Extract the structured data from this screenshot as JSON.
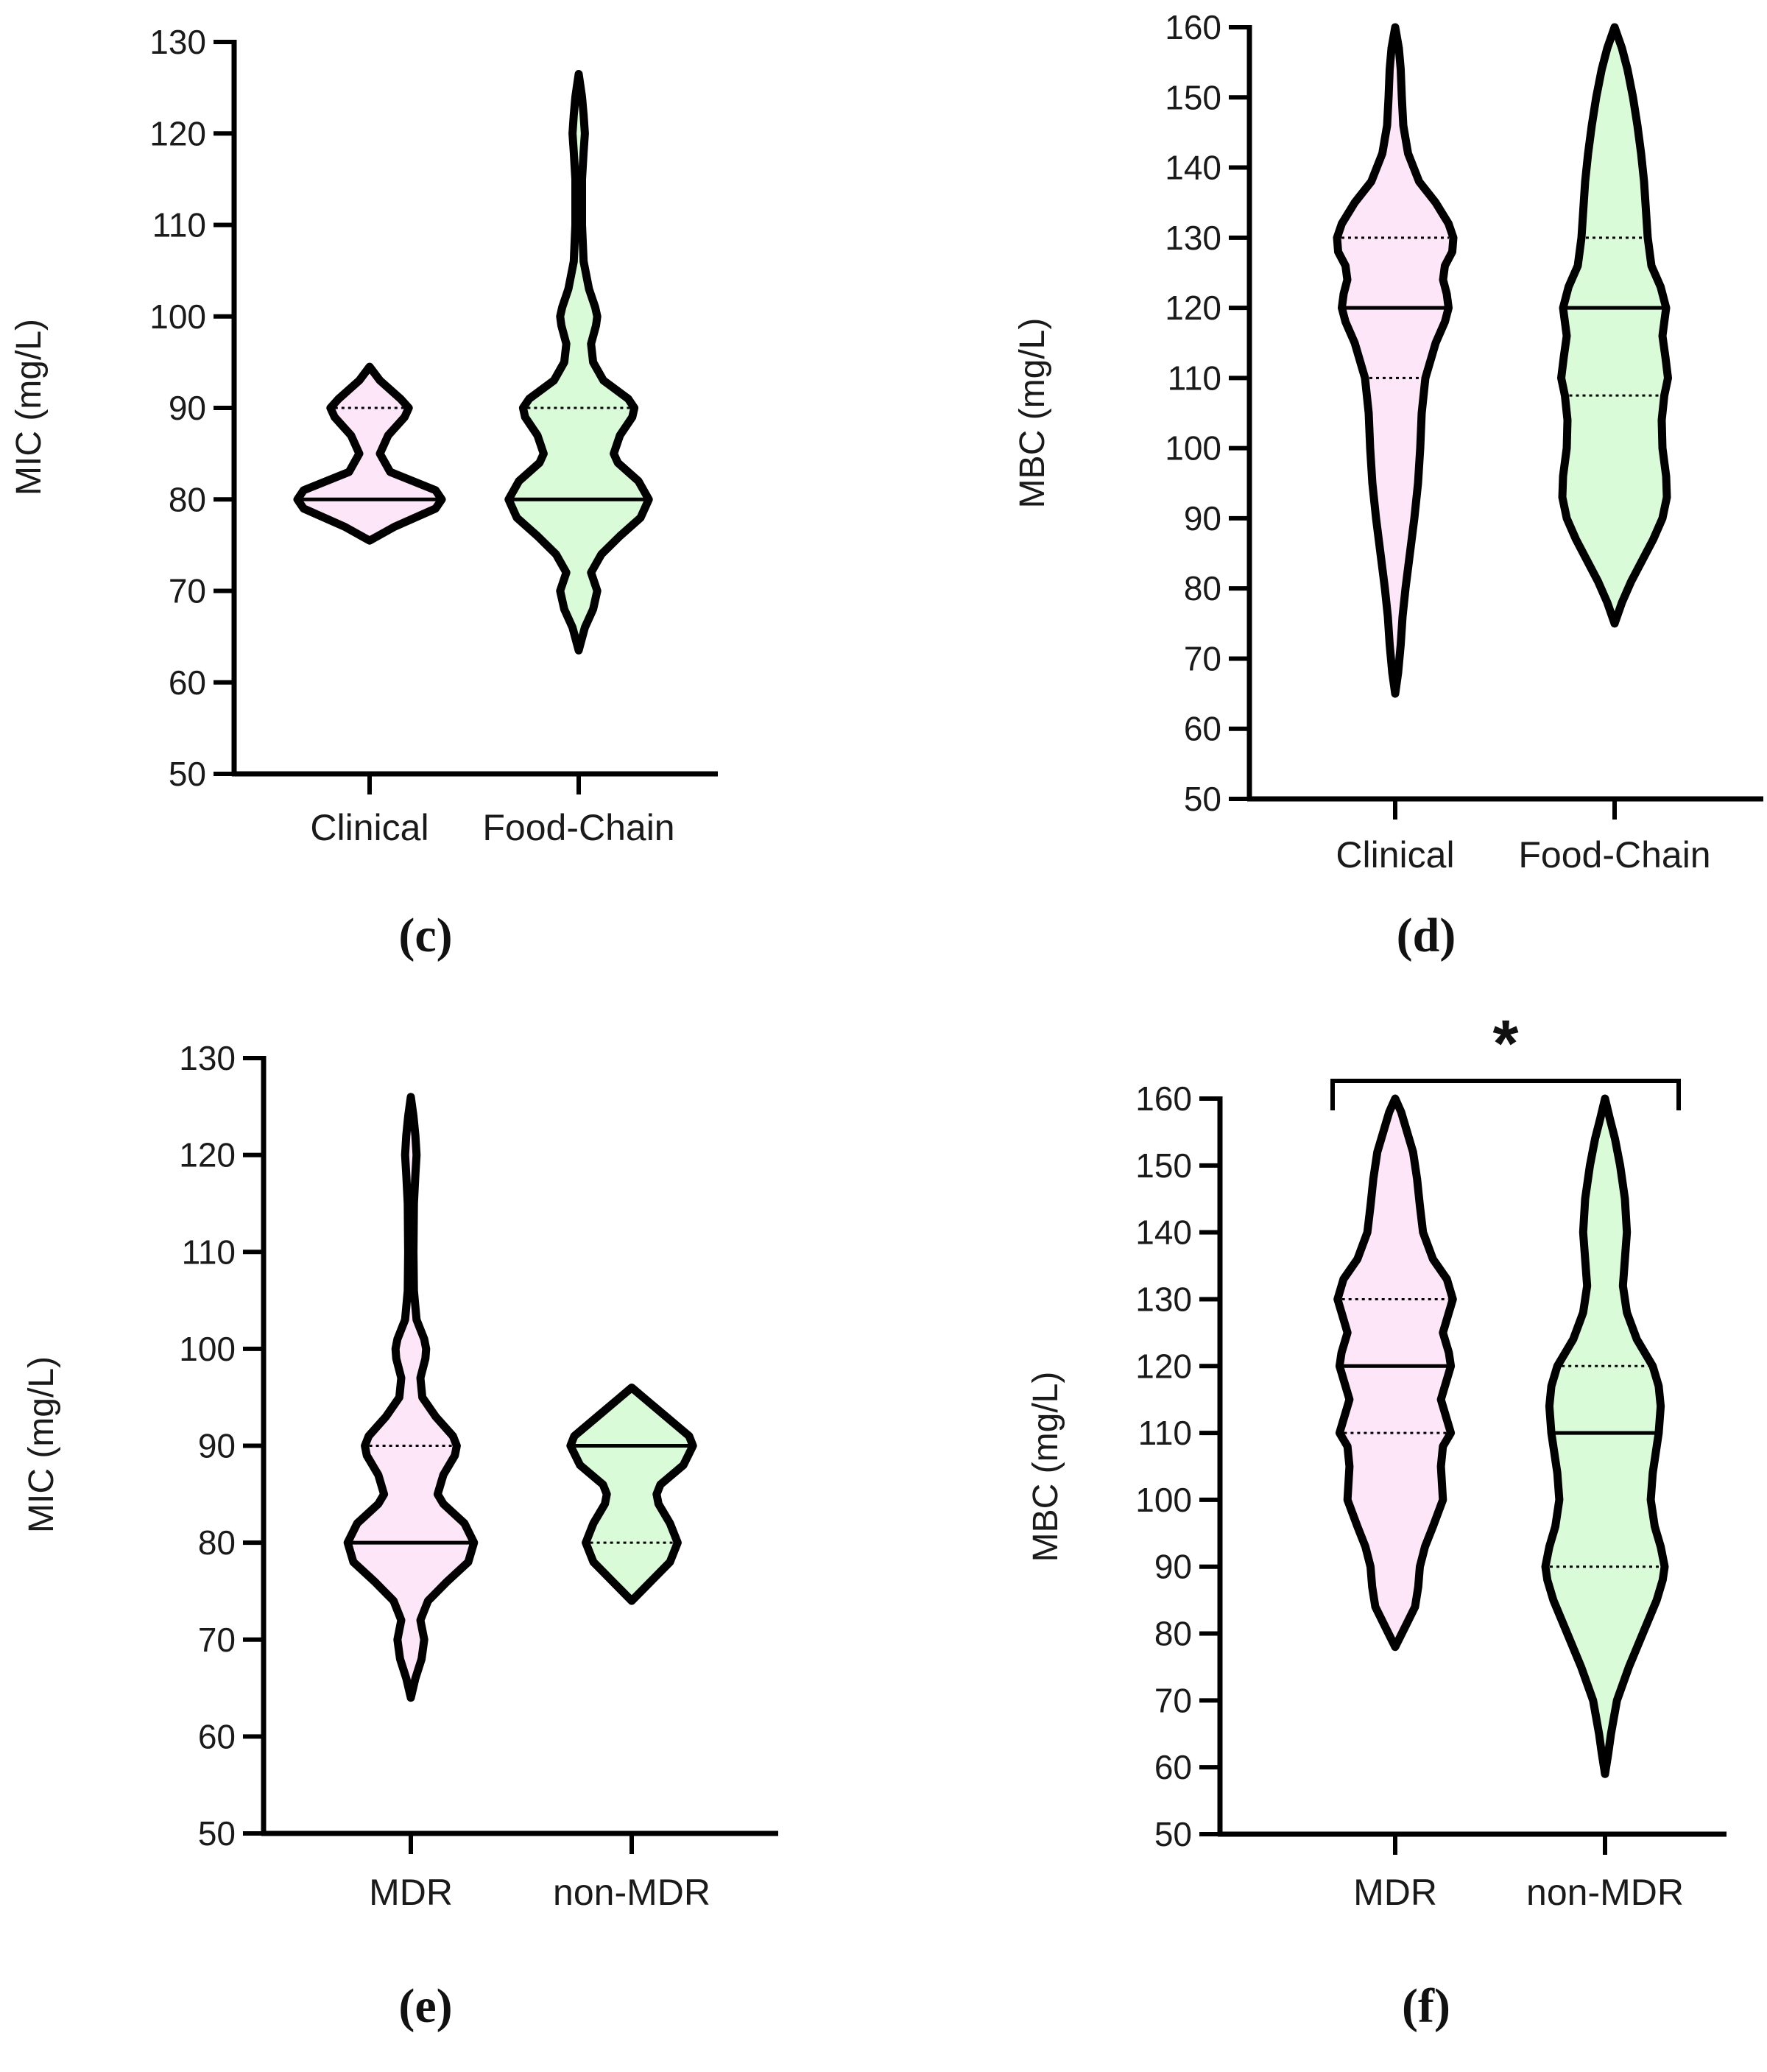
{
  "colors": {
    "group1_fill": "#fde6f7",
    "group2_fill": "#dafbd8",
    "stroke": "#000000"
  },
  "chart_data": [
    {
      "panel": "(c)",
      "type": "violin",
      "ylabel": "MIC (mg/L)",
      "ylim": [
        50,
        130
      ],
      "yticks": [
        50,
        60,
        70,
        80,
        90,
        100,
        110,
        120,
        130
      ],
      "categories": [
        "Clinical",
        "Food-Chain"
      ],
      "series": [
        {
          "category": "Clinical",
          "color": "#fde6f7",
          "range": [
            75.5,
            94.5
          ],
          "median": 80,
          "q1": 80,
          "q3": 90,
          "shape": [
            [
              75.5,
              0
            ],
            [
              77,
              0.6
            ],
            [
              79,
              1.6
            ],
            [
              80,
              1.75
            ],
            [
              81,
              1.6
            ],
            [
              83,
              0.5
            ],
            [
              85,
              0.25
            ],
            [
              87,
              0.45
            ],
            [
              89,
              0.85
            ],
            [
              90,
              0.95
            ],
            [
              91,
              0.75
            ],
            [
              93,
              0.25
            ],
            [
              94.5,
              0
            ]
          ]
        },
        {
          "category": "Food-Chain",
          "color": "#dafbd8",
          "range": [
            63.5,
            126.5
          ],
          "median": 80,
          "q1": 80,
          "q3": 90,
          "shape": [
            [
              63.5,
              0
            ],
            [
              66,
              0.15
            ],
            [
              68,
              0.35
            ],
            [
              70,
              0.45
            ],
            [
              72,
              0.3
            ],
            [
              74,
              0.55
            ],
            [
              76,
              1.0
            ],
            [
              78,
              1.5
            ],
            [
              80,
              1.7
            ],
            [
              82,
              1.45
            ],
            [
              84,
              0.95
            ],
            [
              85,
              0.85
            ],
            [
              87,
              1.0
            ],
            [
              89,
              1.3
            ],
            [
              90,
              1.35
            ],
            [
              91,
              1.2
            ],
            [
              93,
              0.6
            ],
            [
              95,
              0.35
            ],
            [
              97,
              0.3
            ],
            [
              99,
              0.42
            ],
            [
              100,
              0.45
            ],
            [
              101,
              0.4
            ],
            [
              103,
              0.25
            ],
            [
              106,
              0.12
            ],
            [
              110,
              0.08
            ],
            [
              115,
              0.08
            ],
            [
              118,
              0.12
            ],
            [
              120,
              0.15
            ],
            [
              122,
              0.12
            ],
            [
              124,
              0.08
            ],
            [
              126.5,
              0
            ]
          ]
        }
      ]
    },
    {
      "panel": "(d)",
      "type": "violin",
      "ylabel": "MBC (mg/L)",
      "ylim": [
        50,
        160
      ],
      "yticks": [
        50,
        60,
        70,
        80,
        90,
        100,
        110,
        120,
        130,
        140,
        150,
        160
      ],
      "categories": [
        "Clinical",
        "Food-Chain"
      ],
      "series": [
        {
          "category": "Clinical",
          "color": "#fde6f7",
          "range": [
            65,
            160
          ],
          "median": 120,
          "q1": 110,
          "q3": 130,
          "shape": [
            [
              65,
              0
            ],
            [
              68,
              0.08
            ],
            [
              72,
              0.15
            ],
            [
              76,
              0.2
            ],
            [
              80,
              0.28
            ],
            [
              85,
              0.4
            ],
            [
              90,
              0.52
            ],
            [
              95,
              0.62
            ],
            [
              100,
              0.68
            ],
            [
              105,
              0.72
            ],
            [
              110,
              0.82
            ],
            [
              115,
              1.1
            ],
            [
              118,
              1.35
            ],
            [
              120,
              1.45
            ],
            [
              122,
              1.4
            ],
            [
              124,
              1.3
            ],
            [
              126,
              1.35
            ],
            [
              128,
              1.55
            ],
            [
              130,
              1.58
            ],
            [
              132,
              1.45
            ],
            [
              135,
              1.1
            ],
            [
              138,
              0.65
            ],
            [
              142,
              0.35
            ],
            [
              146,
              0.22
            ],
            [
              150,
              0.18
            ],
            [
              154,
              0.15
            ],
            [
              157,
              0.1
            ],
            [
              160,
              0
            ]
          ]
        },
        {
          "category": "Food-Chain",
          "color": "#dafbd8",
          "range": [
            75,
            160
          ],
          "median": 120,
          "q1": 107.5,
          "q3": 130,
          "shape": [
            [
              75,
              0
            ],
            [
              78,
              0.2
            ],
            [
              81,
              0.45
            ],
            [
              84,
              0.75
            ],
            [
              87,
              1.05
            ],
            [
              90,
              1.3
            ],
            [
              93,
              1.42
            ],
            [
              96,
              1.4
            ],
            [
              100,
              1.3
            ],
            [
              104,
              1.28
            ],
            [
              107.5,
              1.35
            ],
            [
              110,
              1.45
            ],
            [
              113,
              1.38
            ],
            [
              116,
              1.3
            ],
            [
              120,
              1.4
            ],
            [
              123,
              1.25
            ],
            [
              126,
              1.0
            ],
            [
              130,
              0.9
            ],
            [
              134,
              0.85
            ],
            [
              138,
              0.8
            ],
            [
              142,
              0.72
            ],
            [
              146,
              0.62
            ],
            [
              150,
              0.5
            ],
            [
              154,
              0.35
            ],
            [
              157,
              0.2
            ],
            [
              160,
              0
            ]
          ]
        }
      ]
    },
    {
      "panel": "(e)",
      "type": "violin",
      "ylabel": "MIC (mg/L)",
      "ylim": [
        50,
        130
      ],
      "yticks": [
        50,
        60,
        70,
        80,
        90,
        100,
        110,
        120,
        130
      ],
      "categories": [
        "MDR",
        "non-MDR"
      ],
      "series": [
        {
          "category": "MDR",
          "color": "#fde6f7",
          "range": [
            64,
            126
          ],
          "median": 80,
          "q1": 80,
          "q3": 90,
          "shape": [
            [
              64,
              0
            ],
            [
              66,
              0.12
            ],
            [
              68,
              0.28
            ],
            [
              70,
              0.35
            ],
            [
              72,
              0.25
            ],
            [
              74,
              0.45
            ],
            [
              76,
              0.95
            ],
            [
              78,
              1.5
            ],
            [
              80,
              1.65
            ],
            [
              82,
              1.4
            ],
            [
              84,
              0.85
            ],
            [
              85,
              0.7
            ],
            [
              87,
              0.85
            ],
            [
              89,
              1.15
            ],
            [
              90,
              1.2
            ],
            [
              91,
              1.1
            ],
            [
              93,
              0.65
            ],
            [
              95,
              0.3
            ],
            [
              97,
              0.25
            ],
            [
              99,
              0.38
            ],
            [
              100,
              0.4
            ],
            [
              101,
              0.35
            ],
            [
              103,
              0.15
            ],
            [
              106,
              0.08
            ],
            [
              110,
              0.07
            ],
            [
              115,
              0.08
            ],
            [
              118,
              0.12
            ],
            [
              120,
              0.15
            ],
            [
              122,
              0.12
            ],
            [
              124,
              0.07
            ],
            [
              126,
              0
            ]
          ]
        },
        {
          "category": "non-MDR",
          "color": "#dafbd8",
          "range": [
            74,
            96
          ],
          "median": 90,
          "q1": 80,
          "q3": 90,
          "shape": [
            [
              74,
              0
            ],
            [
              76,
              0.5
            ],
            [
              78,
              1.0
            ],
            [
              80,
              1.2
            ],
            [
              82,
              1.0
            ],
            [
              84,
              0.7
            ],
            [
              85,
              0.65
            ],
            [
              86,
              0.75
            ],
            [
              88,
              1.35
            ],
            [
              90,
              1.6
            ],
            [
              91,
              1.5
            ],
            [
              93,
              0.9
            ],
            [
              95,
              0.3
            ],
            [
              96,
              0
            ]
          ]
        }
      ]
    },
    {
      "panel": "(f)",
      "type": "violin",
      "ylabel": "MBC (mg/L)",
      "ylim": [
        50,
        160
      ],
      "yticks": [
        50,
        60,
        70,
        80,
        90,
        100,
        110,
        120,
        130,
        140,
        150,
        160
      ],
      "categories": [
        "MDR",
        "non-MDR"
      ],
      "significance": "*",
      "series": [
        {
          "category": "MDR",
          "color": "#fde6f7",
          "range": [
            78,
            160
          ],
          "median": 120,
          "q1": 110,
          "q3": 130,
          "shape": [
            [
              78,
              0
            ],
            [
              81,
              0.25
            ],
            [
              84,
              0.5
            ],
            [
              87,
              0.58
            ],
            [
              90,
              0.62
            ],
            [
              93,
              0.75
            ],
            [
              96,
              0.95
            ],
            [
              100,
              1.2
            ],
            [
              105,
              1.15
            ],
            [
              108,
              1.2
            ],
            [
              110,
              1.4
            ],
            [
              112,
              1.3
            ],
            [
              115,
              1.15
            ],
            [
              120,
              1.4
            ],
            [
              122,
              1.35
            ],
            [
              125,
              1.2
            ],
            [
              128,
              1.35
            ],
            [
              130,
              1.45
            ],
            [
              133,
              1.3
            ],
            [
              136,
              0.95
            ],
            [
              140,
              0.7
            ],
            [
              144,
              0.62
            ],
            [
              148,
              0.55
            ],
            [
              152,
              0.45
            ],
            [
              155,
              0.3
            ],
            [
              158,
              0.15
            ],
            [
              160,
              0
            ]
          ]
        },
        {
          "category": "non-MDR",
          "color": "#dafbd8",
          "range": [
            59,
            160
          ],
          "median": 110,
          "q1": 90,
          "q3": 120,
          "shape": [
            [
              59,
              0
            ],
            [
              62,
              0.08
            ],
            [
              65,
              0.15
            ],
            [
              70,
              0.3
            ],
            [
              75,
              0.6
            ],
            [
              80,
              0.95
            ],
            [
              85,
              1.3
            ],
            [
              88,
              1.45
            ],
            [
              90,
              1.5
            ],
            [
              93,
              1.4
            ],
            [
              96,
              1.25
            ],
            [
              100,
              1.15
            ],
            [
              104,
              1.2
            ],
            [
              108,
              1.3
            ],
            [
              110,
              1.35
            ],
            [
              114,
              1.4
            ],
            [
              117,
              1.35
            ],
            [
              120,
              1.2
            ],
            [
              124,
              0.8
            ],
            [
              128,
              0.55
            ],
            [
              132,
              0.45
            ],
            [
              136,
              0.5
            ],
            [
              140,
              0.55
            ],
            [
              145,
              0.5
            ],
            [
              150,
              0.38
            ],
            [
              154,
              0.25
            ],
            [
              157,
              0.12
            ],
            [
              160,
              0
            ]
          ]
        }
      ]
    }
  ]
}
